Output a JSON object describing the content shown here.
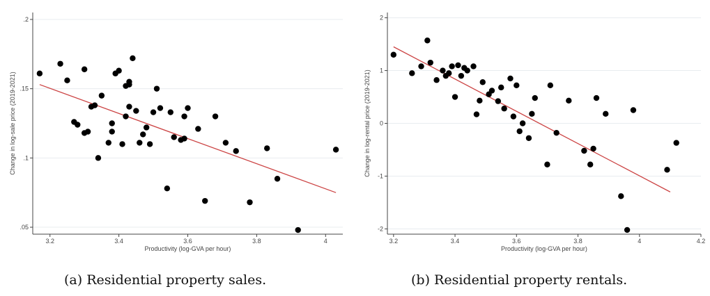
{
  "chart_data": [
    {
      "type": "scatter",
      "xlabel": "Productivity (log-GVA per hour)",
      "ylabel": "Change in log-sale price (2019-2021)",
      "xlim": [
        3.15,
        4.05
      ],
      "ylim": [
        0.045,
        0.205
      ],
      "x_ticks": [
        3.2,
        3.4,
        3.6,
        3.8,
        4.0
      ],
      "x_tick_labels": [
        "3.2",
        "3.4",
        "3.6",
        "3.8",
        "4"
      ],
      "y_ticks": [
        0.05,
        0.1,
        0.15,
        0.2
      ],
      "y_tick_labels": [
        ".05",
        ".1",
        ".15",
        ".2"
      ],
      "grid": true,
      "fit_line": {
        "x": [
          3.17,
          4.03
        ],
        "y": [
          0.153,
          0.075
        ]
      },
      "series": [
        {
          "points": [
            [
              3.17,
              0.161
            ],
            [
              3.23,
              0.168
            ],
            [
              3.25,
              0.156
            ],
            [
              3.27,
              0.126
            ],
            [
              3.28,
              0.124
            ],
            [
              3.3,
              0.164
            ],
            [
              3.3,
              0.118
            ],
            [
              3.31,
              0.119
            ],
            [
              3.32,
              0.137
            ],
            [
              3.33,
              0.138
            ],
            [
              3.34,
              0.1
            ],
            [
              3.35,
              0.145
            ],
            [
              3.37,
              0.111
            ],
            [
              3.38,
              0.125
            ],
            [
              3.38,
              0.119
            ],
            [
              3.39,
              0.161
            ],
            [
              3.4,
              0.163
            ],
            [
              3.41,
              0.11
            ],
            [
              3.42,
              0.13
            ],
            [
              3.42,
              0.152
            ],
            [
              3.43,
              0.155
            ],
            [
              3.43,
              0.137
            ],
            [
              3.43,
              0.153
            ],
            [
              3.44,
              0.172
            ],
            [
              3.45,
              0.134
            ],
            [
              3.46,
              0.111
            ],
            [
              3.47,
              0.117
            ],
            [
              3.48,
              0.122
            ],
            [
              3.49,
              0.11
            ],
            [
              3.5,
              0.133
            ],
            [
              3.51,
              0.15
            ],
            [
              3.52,
              0.136
            ],
            [
              3.54,
              0.078
            ],
            [
              3.55,
              0.133
            ],
            [
              3.56,
              0.115
            ],
            [
              3.58,
              0.113
            ],
            [
              3.59,
              0.114
            ],
            [
              3.59,
              0.13
            ],
            [
              3.6,
              0.136
            ],
            [
              3.63,
              0.121
            ],
            [
              3.65,
              0.069
            ],
            [
              3.68,
              0.13
            ],
            [
              3.71,
              0.111
            ],
            [
              3.78,
              0.068
            ],
            [
              3.74,
              0.105
            ],
            [
              3.83,
              0.107
            ],
            [
              3.86,
              0.085
            ],
            [
              3.92,
              0.048
            ],
            [
              4.03,
              0.106
            ]
          ]
        }
      ]
    },
    {
      "type": "scatter",
      "xlabel": "Productivity (log-GVA per hour)",
      "ylabel": "Change in log-rental price (2019-2021)",
      "xlim": [
        3.18,
        4.2
      ],
      "ylim": [
        -2.1,
        2.1
      ],
      "x_ticks": [
        3.2,
        3.4,
        3.6,
        3.8,
        4.0,
        4.2
      ],
      "x_tick_labels": [
        "3.2",
        "3.4",
        "3.6",
        "3.8",
        "4",
        "4.2"
      ],
      "y_ticks": [
        -2,
        -1,
        0,
        1,
        2
      ],
      "y_tick_labels": [
        "-2",
        "-1",
        "0",
        "1",
        "2"
      ],
      "grid": true,
      "fit_line": {
        "x": [
          3.2,
          4.1
        ],
        "y": [
          1.45,
          -1.3
        ]
      },
      "series": [
        {
          "points": [
            [
              3.2,
              1.3
            ],
            [
              3.26,
              0.95
            ],
            [
              3.29,
              1.08
            ],
            [
              3.31,
              1.57
            ],
            [
              3.32,
              1.15
            ],
            [
              3.34,
              0.82
            ],
            [
              3.36,
              1.0
            ],
            [
              3.37,
              0.9
            ],
            [
              3.38,
              0.95
            ],
            [
              3.39,
              1.08
            ],
            [
              3.4,
              0.5
            ],
            [
              3.41,
              1.1
            ],
            [
              3.42,
              0.9
            ],
            [
              3.43,
              1.05
            ],
            [
              3.44,
              1.0
            ],
            [
              3.46,
              1.08
            ],
            [
              3.47,
              0.17
            ],
            [
              3.48,
              0.43
            ],
            [
              3.49,
              0.78
            ],
            [
              3.51,
              0.55
            ],
            [
              3.52,
              0.62
            ],
            [
              3.54,
              0.42
            ],
            [
              3.55,
              0.68
            ],
            [
              3.56,
              0.28
            ],
            [
              3.58,
              0.85
            ],
            [
              3.59,
              0.13
            ],
            [
              3.6,
              0.72
            ],
            [
              3.61,
              -0.15
            ],
            [
              3.62,
              0.0
            ],
            [
              3.64,
              -0.28
            ],
            [
              3.65,
              0.18
            ],
            [
              3.66,
              0.48
            ],
            [
              3.7,
              -0.78
            ],
            [
              3.71,
              0.72
            ],
            [
              3.73,
              -0.18
            ],
            [
              3.77,
              0.43
            ],
            [
              3.82,
              -0.52
            ],
            [
              3.84,
              -0.78
            ],
            [
              3.85,
              -0.48
            ],
            [
              3.86,
              0.48
            ],
            [
              3.89,
              0.18
            ],
            [
              3.94,
              -1.38
            ],
            [
              3.96,
              -2.02
            ],
            [
              3.98,
              0.25
            ],
            [
              4.09,
              -0.88
            ],
            [
              4.12,
              -0.37
            ]
          ]
        }
      ]
    }
  ],
  "captions": {
    "a": "(a) Residential property sales.",
    "b": "(b) Residential property rentals."
  },
  "colors": {
    "point": "#000000",
    "fit_line": "#cc4444",
    "grid": "#e8ecef",
    "axis": "#444444"
  }
}
